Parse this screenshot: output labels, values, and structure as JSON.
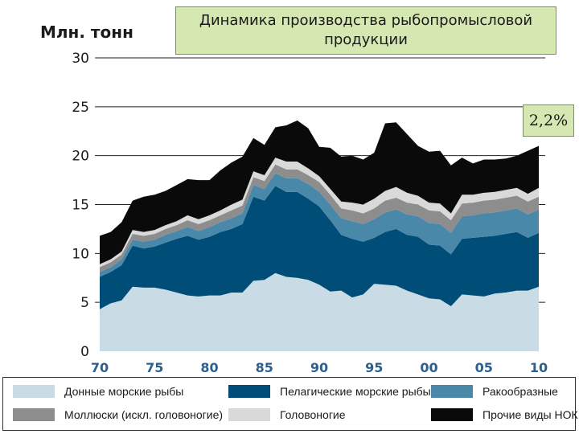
{
  "title": "Динамика производства рыбопромысловой продукции",
  "y_unit_label": "Млн. тонн",
  "growth_label": "2,2%",
  "chart_data": {
    "type": "area",
    "stacked": true,
    "title": "Динамика производства рыбопромысловой продукции",
    "ylabel": "Млн. тонн",
    "xlabel": "",
    "ylim": [
      0,
      30
    ],
    "yticks": [
      0,
      5,
      10,
      15,
      20,
      25,
      30
    ],
    "xticks": [
      {
        "year": 1970,
        "label": "70"
      },
      {
        "year": 1975,
        "label": "75"
      },
      {
        "year": 1980,
        "label": "80"
      },
      {
        "year": 1985,
        "label": "85"
      },
      {
        "year": 1990,
        "label": "90"
      },
      {
        "year": 1995,
        "label": "95"
      },
      {
        "year": 2000,
        "label": "00"
      },
      {
        "year": 2005,
        "label": "05"
      },
      {
        "year": 2010,
        "label": "10"
      }
    ],
    "x": [
      1970,
      1971,
      1972,
      1973,
      1974,
      1975,
      1976,
      1977,
      1978,
      1979,
      1980,
      1981,
      1982,
      1983,
      1984,
      1985,
      1986,
      1987,
      1988,
      1989,
      1990,
      1991,
      1992,
      1993,
      1994,
      1995,
      1996,
      1997,
      1998,
      1999,
      2000,
      2001,
      2002,
      2003,
      2004,
      2005,
      2006,
      2007,
      2008,
      2009,
      2010
    ],
    "series": [
      {
        "name": "Донные морские рыбы",
        "color": "#c9dce6",
        "values": [
          4.3,
          4.9,
          5.2,
          6.6,
          6.5,
          6.5,
          6.3,
          6.0,
          5.7,
          5.6,
          5.7,
          5.7,
          6.0,
          6.0,
          7.2,
          7.3,
          8.0,
          7.6,
          7.5,
          7.3,
          6.8,
          6.1,
          6.2,
          5.5,
          5.8,
          6.9,
          6.8,
          6.7,
          6.2,
          5.8,
          5.4,
          5.3,
          4.6,
          5.8,
          5.7,
          5.6,
          5.9,
          6.0,
          6.2,
          6.2,
          6.6
        ]
      },
      {
        "name": "Пелагические морские рыбы",
        "color": "#004d78",
        "values": [
          3.3,
          3.2,
          3.6,
          4.2,
          4.0,
          4.2,
          4.8,
          5.5,
          6.1,
          5.8,
          6.0,
          6.5,
          6.5,
          7.0,
          8.6,
          8.1,
          8.9,
          8.7,
          8.8,
          8.3,
          8.0,
          7.3,
          5.7,
          6.0,
          5.4,
          4.7,
          5.4,
          5.8,
          5.7,
          5.9,
          5.5,
          5.5,
          5.3,
          5.7,
          5.9,
          6.1,
          5.9,
          6.0,
          6.0,
          5.4,
          5.5
        ]
      },
      {
        "name": "Ракообразные",
        "color": "#4a88aa",
        "values": [
          0.5,
          0.5,
          0.6,
          0.6,
          0.7,
          0.7,
          0.8,
          0.8,
          0.9,
          0.9,
          1.0,
          1.0,
          1.1,
          1.1,
          1.2,
          1.2,
          1.3,
          1.4,
          1.4,
          1.5,
          1.5,
          1.6,
          1.7,
          1.8,
          1.8,
          1.9,
          2.0,
          2.0,
          2.1,
          2.1,
          2.2,
          2.2,
          2.2,
          2.3,
          2.3,
          2.4,
          2.4,
          2.4,
          2.4,
          2.4,
          2.4
        ]
      },
      {
        "name": "Моллюски (искл. головоногие)",
        "color": "#8d8d8d",
        "values": [
          0.5,
          0.5,
          0.5,
          0.6,
          0.6,
          0.6,
          0.6,
          0.6,
          0.7,
          0.7,
          0.7,
          0.7,
          0.8,
          0.8,
          0.8,
          0.8,
          0.9,
          0.9,
          0.9,
          0.9,
          1.0,
          1.0,
          1.0,
          1.1,
          1.1,
          1.1,
          1.2,
          1.2,
          1.2,
          1.2,
          1.3,
          1.3,
          1.3,
          1.3,
          1.3,
          1.3,
          1.3,
          1.3,
          1.3,
          1.3,
          1.3
        ]
      },
      {
        "name": "Головоногие",
        "color": "#d9d9d9",
        "values": [
          0.3,
          0.3,
          0.3,
          0.4,
          0.4,
          0.4,
          0.4,
          0.4,
          0.5,
          0.5,
          0.5,
          0.5,
          0.6,
          0.6,
          0.6,
          0.6,
          0.7,
          0.8,
          0.8,
          0.7,
          0.6,
          0.6,
          0.7,
          0.8,
          0.9,
          1.0,
          1.0,
          1.1,
          1.0,
          0.9,
          0.8,
          0.8,
          0.7,
          0.9,
          0.8,
          0.8,
          0.8,
          0.8,
          0.8,
          0.8,
          0.9
        ]
      },
      {
        "name": "Прочие виды НОК",
        "color": "#0a0a0a",
        "values": [
          2.9,
          2.8,
          3.0,
          3.0,
          3.6,
          3.6,
          3.5,
          3.7,
          3.7,
          4.0,
          3.6,
          4.1,
          4.3,
          4.4,
          3.4,
          3.1,
          3.1,
          3.7,
          4.2,
          4.1,
          3.0,
          4.2,
          4.6,
          4.8,
          4.6,
          4.7,
          6.9,
          6.6,
          6.0,
          5.1,
          5.2,
          5.4,
          4.9,
          3.8,
          3.2,
          3.4,
          3.3,
          3.2,
          3.3,
          4.4,
          4.3
        ]
      }
    ],
    "annotation": "2,2%",
    "grid": true,
    "legend_position": "bottom"
  }
}
